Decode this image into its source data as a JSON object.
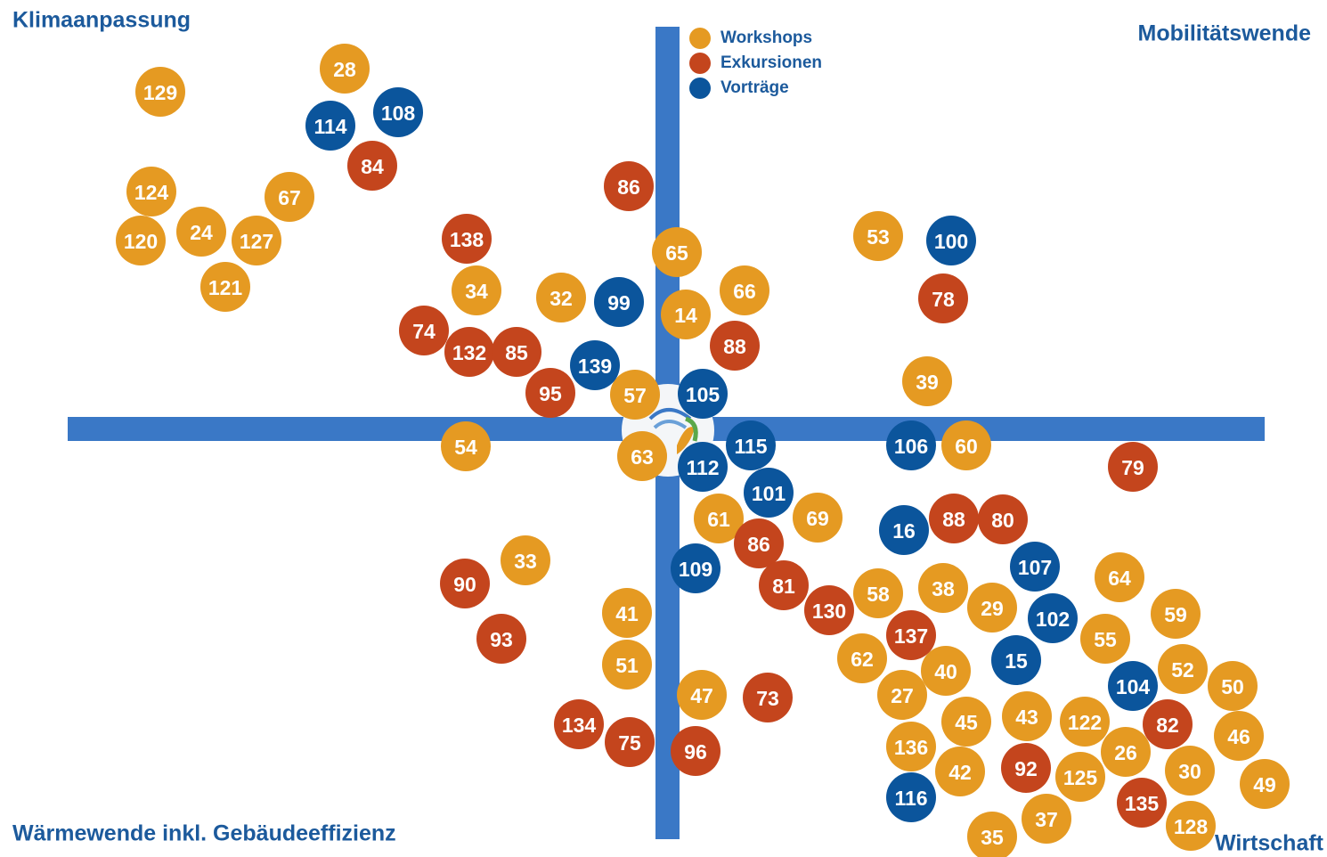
{
  "quadrants": {
    "top_left": "Klimaanpassung",
    "top_right": "Mobilitätswende",
    "bottom_left": "Wärmewende inkl. Gebäudeeffizienz",
    "bottom_right": "Wirtschaft"
  },
  "groups": [
    {
      "name": "Workshops",
      "color": "#e59a22",
      "items": [
        "129",
        "28",
        "124",
        "67",
        "120",
        "24",
        "127",
        "121",
        "53",
        "65",
        "34",
        "32",
        "66",
        "14",
        "39",
        "57",
        "54",
        "63",
        "60",
        "61",
        "69",
        "33",
        "58",
        "38",
        "29",
        "64",
        "59",
        "41",
        "55",
        "62",
        "40",
        "52",
        "50",
        "51",
        "47",
        "27",
        "45",
        "43",
        "122",
        "46",
        "136",
        "26",
        "30",
        "42",
        "125",
        "49",
        "37",
        "35",
        "128"
      ]
    },
    {
      "name": "Exkursionen",
      "color": "#c4451d",
      "items": [
        "84",
        "86",
        "138",
        "78",
        "74",
        "132",
        "85",
        "88",
        "95",
        "79",
        "88",
        "80",
        "86",
        "90",
        "81",
        "130",
        "93",
        "137",
        "73",
        "134",
        "75",
        "96",
        "92",
        "82",
        "135"
      ]
    },
    {
      "name": "Vorträge",
      "color": "#0b559c",
      "items": [
        "114",
        "108",
        "100",
        "99",
        "139",
        "105",
        "115",
        "106",
        "112",
        "101",
        "16",
        "107",
        "109",
        "102",
        "15",
        "104",
        "116"
      ]
    }
  ]
}
